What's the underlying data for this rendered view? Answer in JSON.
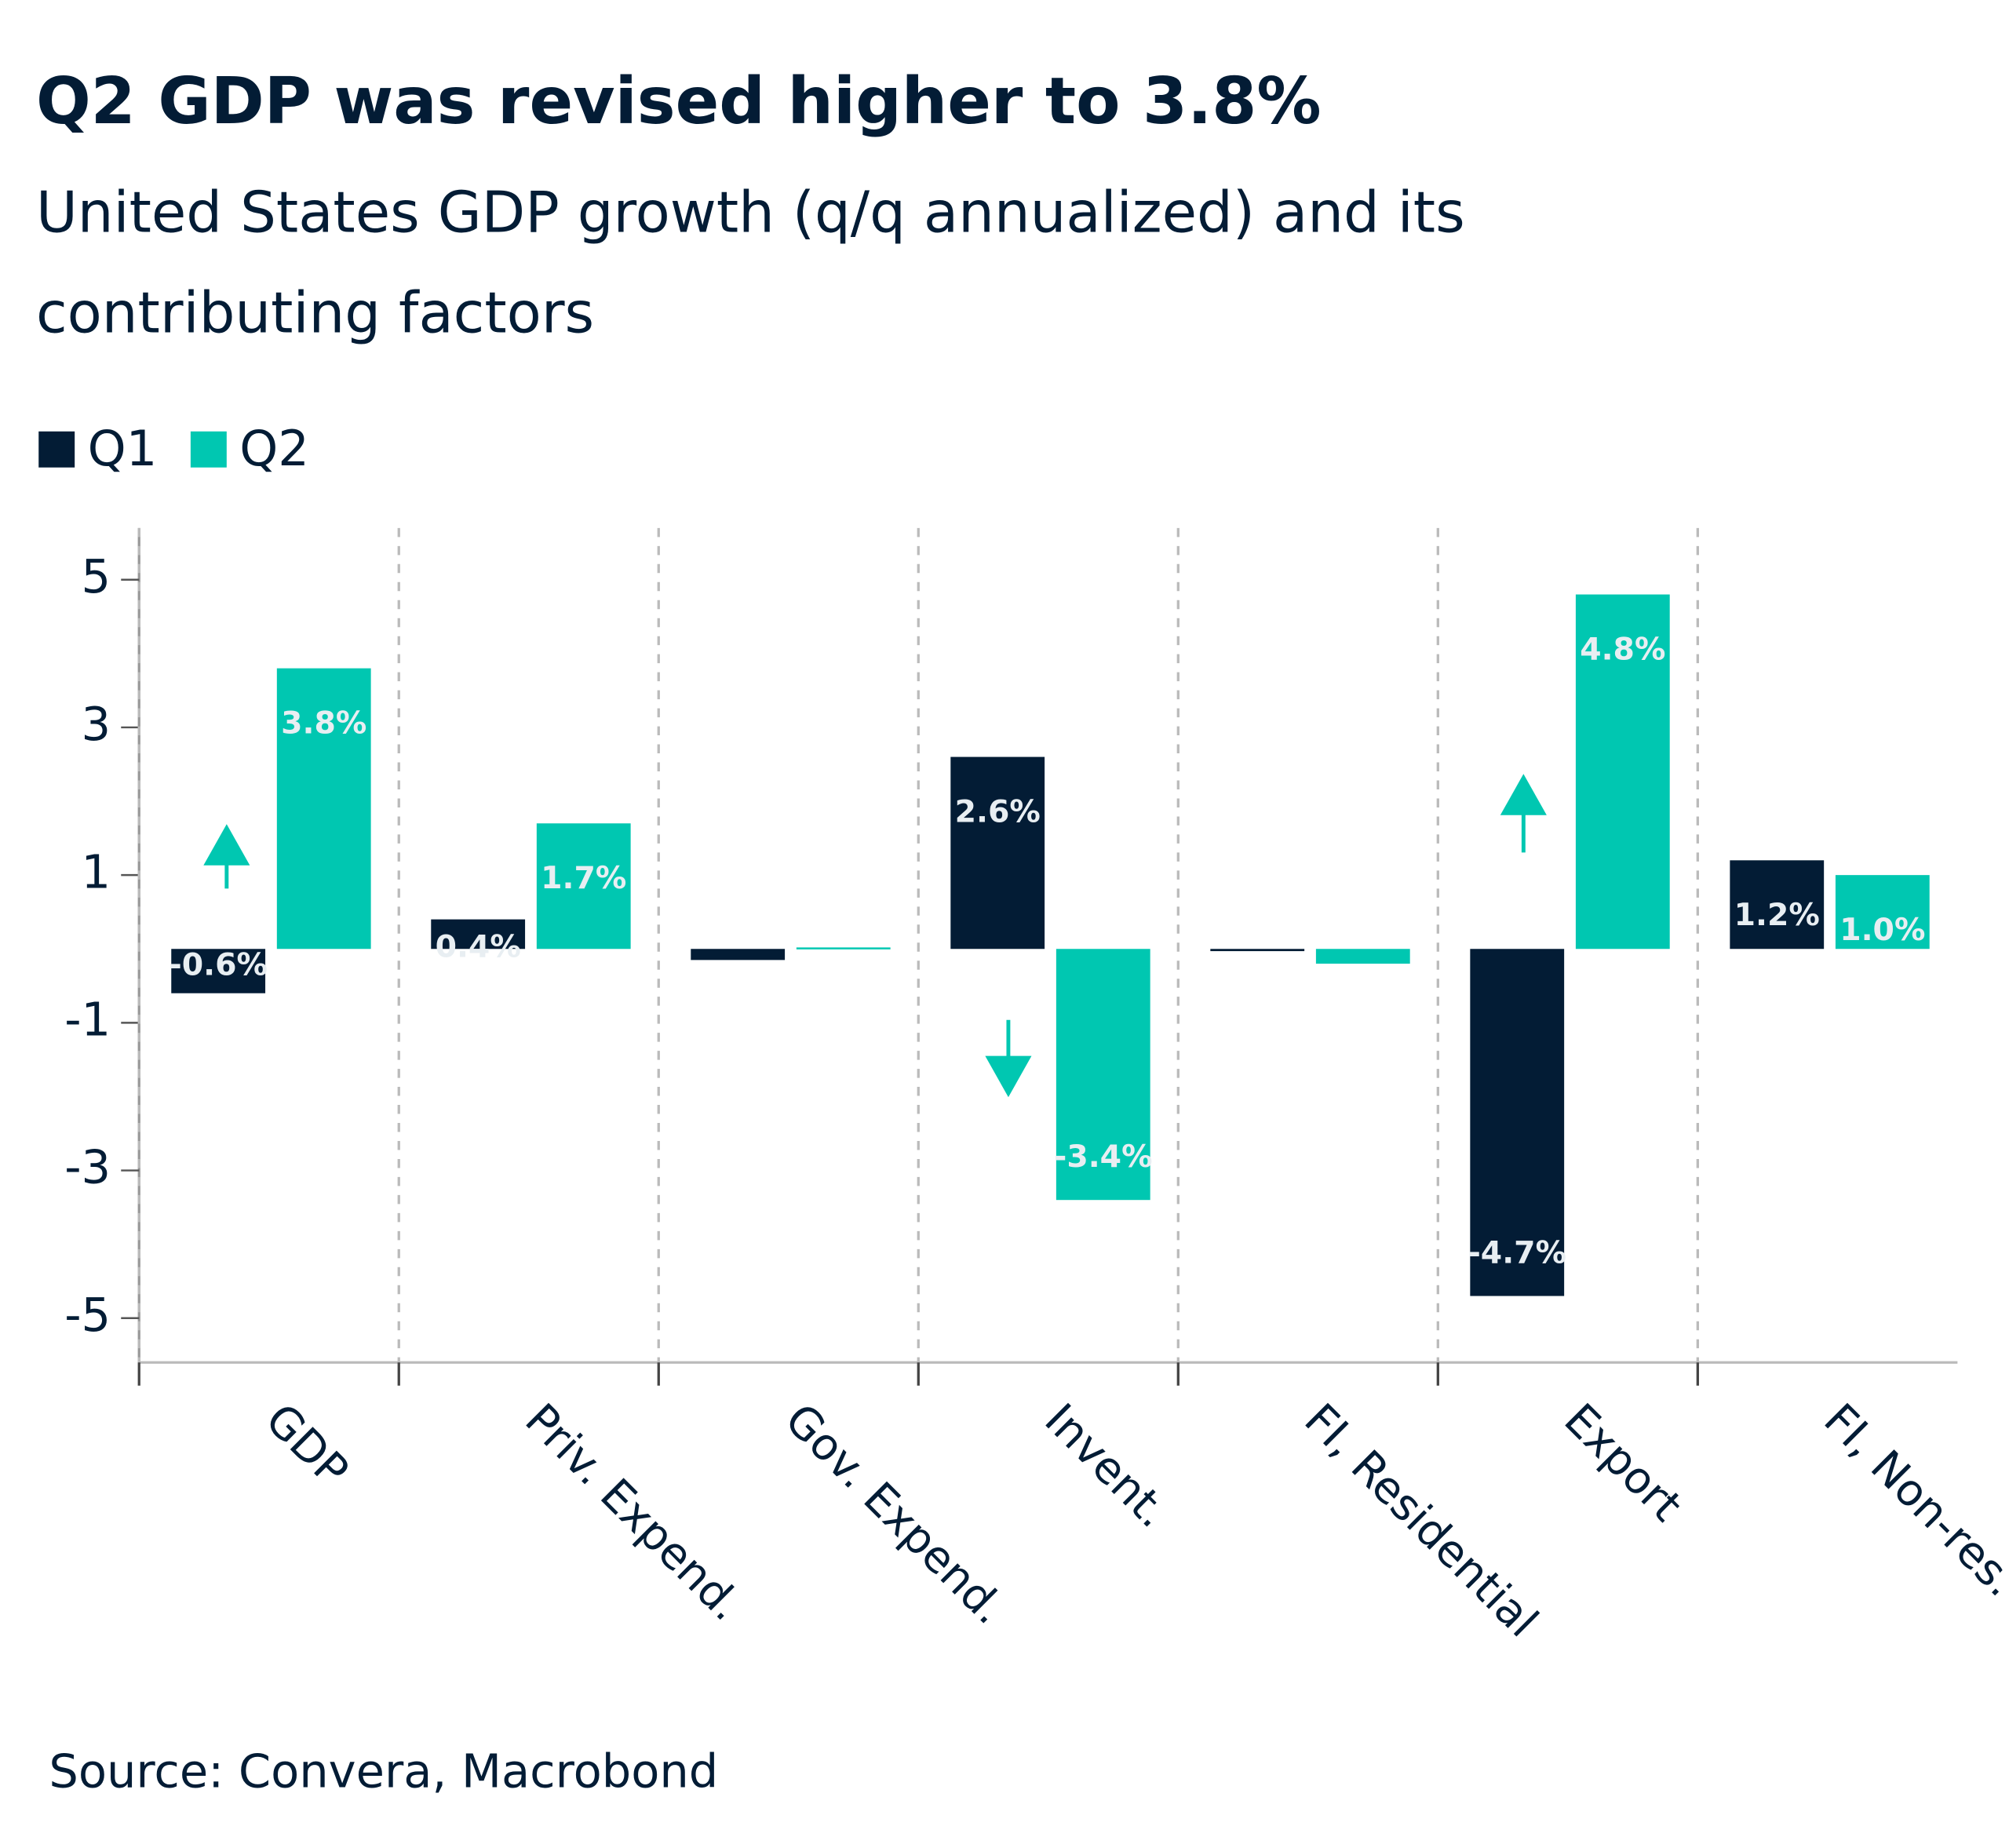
{
  "chart_data": {
    "type": "bar",
    "title": "Q2 GDP was revised higher to 3.8%",
    "subtitle": [
      "United States GDP growth (q/q annualized) and its",
      "contributing factors"
    ],
    "source": "Source: Convera, Macrobond",
    "categories": [
      "GDP",
      "Priv. Expend.",
      "Gov. Expend.",
      "Invent.",
      "FI, Residential",
      "Export",
      "FI, Non-res."
    ],
    "series": [
      {
        "name": "Q1",
        "color": "#031c35",
        "values": [
          -0.6,
          0.4,
          -0.15,
          2.6,
          -0.03,
          -4.7,
          1.2
        ],
        "value_labels": [
          "-0.6%",
          "0.4%",
          null,
          "2.6%",
          null,
          "-4.7%",
          "1.2%"
        ]
      },
      {
        "name": "Q2",
        "color": "#00c7b1",
        "values": [
          3.8,
          1.7,
          0.02,
          -3.4,
          -0.2,
          4.8,
          1.0
        ],
        "value_labels": [
          "3.8%",
          "1.7%",
          null,
          "-3.4%",
          null,
          "4.8%",
          "1.0%"
        ]
      }
    ],
    "ylim": [
      -5.6,
      5.7
    ],
    "yticks": [
      -5,
      -3,
      -1,
      1,
      3,
      5
    ],
    "legend": "top-left"
  }
}
